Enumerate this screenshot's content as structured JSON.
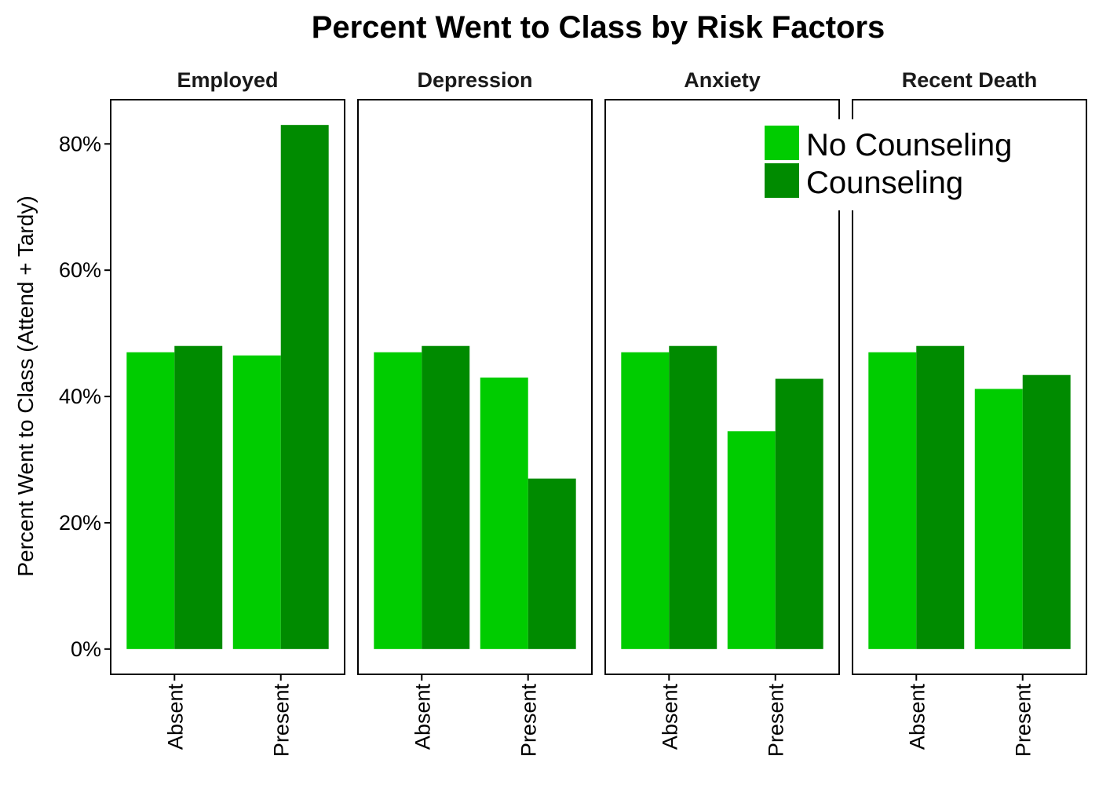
{
  "chart_data": {
    "type": "bar",
    "title": "Percent Went to Class by Risk Factors",
    "ylabel": "Percent Went to Class (Attend + Tardy)",
    "xlabel": "",
    "ylim": [
      -0.04,
      0.87
    ],
    "yticks": [
      0,
      0.2,
      0.4,
      0.6,
      0.8
    ],
    "ytick_labels": [
      "0%",
      "20%",
      "40%",
      "60%",
      "80%"
    ],
    "categories": [
      "Absent",
      "Present"
    ],
    "legend": {
      "position": "top-right",
      "entries": [
        {
          "name": "No Counseling",
          "color": "#00cc00"
        },
        {
          "name": "Counseling",
          "color": "#008b00"
        }
      ]
    },
    "facets": [
      {
        "name": "Employed",
        "series": [
          {
            "name": "No Counseling",
            "values": [
              0.47,
              0.465
            ]
          },
          {
            "name": "Counseling",
            "values": [
              0.48,
              0.83
            ]
          }
        ]
      },
      {
        "name": "Depression",
        "series": [
          {
            "name": "No Counseling",
            "values": [
              0.47,
              0.43
            ]
          },
          {
            "name": "Counseling",
            "values": [
              0.48,
              0.27
            ]
          }
        ]
      },
      {
        "name": "Anxiety",
        "series": [
          {
            "name": "No Counseling",
            "values": [
              0.47,
              0.345
            ]
          },
          {
            "name": "Counseling",
            "values": [
              0.48,
              0.428
            ]
          }
        ]
      },
      {
        "name": "Recent Death",
        "series": [
          {
            "name": "No Counseling",
            "values": [
              0.47,
              0.412
            ]
          },
          {
            "name": "Counseling",
            "values": [
              0.48,
              0.434
            ]
          }
        ]
      }
    ]
  }
}
